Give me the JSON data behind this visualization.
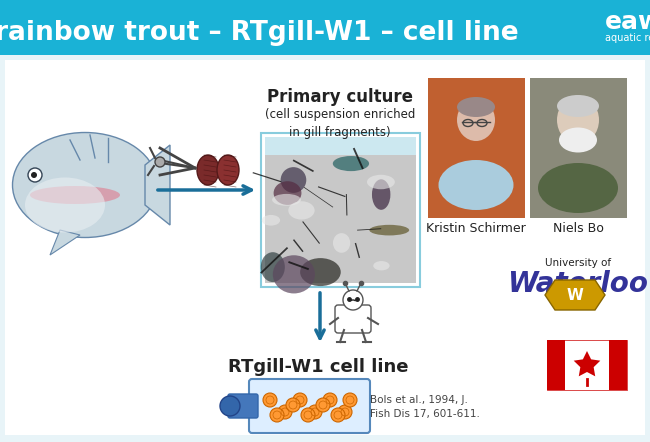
{
  "background_color": "#ffffff",
  "body_bg": "#e8f4f8",
  "header_color": "#1ab2d6",
  "header_text": "rainbow trout – RTgill-W1 – cell line",
  "header_text_color": "#ffffff",
  "header_font_size": 19,
  "eawa_text": "eawa",
  "eawa_subtext": "aquatic research",
  "primary_culture_title": "Primary culture",
  "primary_culture_sub": "(cell suspension enriched\nin gill fragments)",
  "rtgill_label": "RTgill-W1 cell line",
  "citation": "Bols et al., 1994, J.\nFish Dis 17, 601-611.",
  "name1": "Kristin Schirmer",
  "name2": "Niels Bo",
  "arrow_color": "#1a6e99",
  "label_color": "#222222",
  "photo1_bg": "#c06030",
  "photo2_bg": "#8a8a7a",
  "waterloo_color": "#333399"
}
